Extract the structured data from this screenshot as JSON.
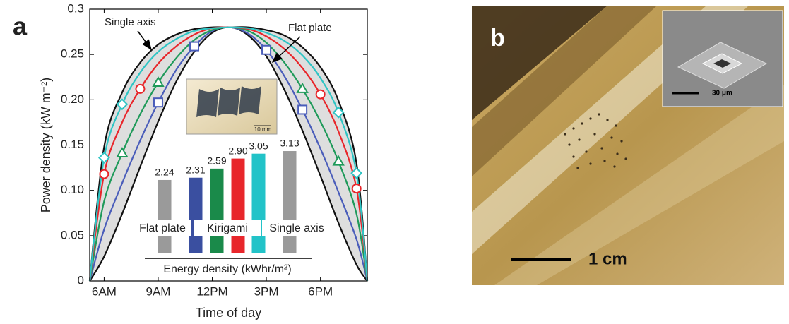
{
  "chart_data": [
    {
      "type": "line",
      "y_label": "Power density (kW m⁻²)",
      "x_label": "Time of day",
      "x": [
        5.2,
        6,
        7,
        8,
        9,
        10,
        11,
        12,
        13,
        14,
        15,
        16,
        17,
        18,
        19,
        20,
        20.6
      ],
      "xlim": [
        5.2,
        20.6
      ],
      "xticks": [
        {
          "value": 6,
          "label": "6AM"
        },
        {
          "value": 9,
          "label": "9AM"
        },
        {
          "value": 12,
          "label": "12PM"
        },
        {
          "value": 15,
          "label": "3PM"
        },
        {
          "value": 18,
          "label": "6PM"
        }
      ],
      "ylim": [
        0,
        0.3
      ],
      "yticks": [
        0,
        0.05,
        {
          "value": 0.1,
          "label": "0.10"
        },
        0.15,
        {
          "value": 0.2,
          "label": "0.20"
        },
        0.25,
        0.3
      ],
      "fill_between_color": "#dedede",
      "series": [
        {
          "color": "#111111",
          "values": [
            0,
            0.027,
            0.074,
            0.126,
            0.176,
            0.22,
            0.253,
            0.274,
            0.28,
            0.271,
            0.248,
            0.211,
            0.166,
            0.116,
            0.064,
            0.018,
            0
          ]
        },
        {
          "color": "#111111",
          "values": [
            0,
            0.148,
            0.208,
            0.241,
            0.261,
            0.272,
            0.278,
            0.28,
            0.28,
            0.28,
            0.277,
            0.271,
            0.258,
            0.236,
            0.199,
            0.13,
            0
          ]
        },
        {
          "color": "#4a5dba",
          "marker": "square",
          "values": [
            0,
            0.057,
            0.108,
            0.155,
            0.197,
            0.233,
            0.259,
            0.276,
            0.28,
            0.273,
            0.255,
            0.226,
            0.189,
            0.146,
            0.098,
            0.046,
            0
          ]
        },
        {
          "color": "#1f9a5a",
          "marker": "triangle",
          "values": [
            0,
            0.088,
            0.141,
            0.184,
            0.219,
            0.246,
            0.266,
            0.277,
            0.28,
            0.276,
            0.263,
            0.241,
            0.212,
            0.176,
            0.132,
            0.074,
            0
          ]
        },
        {
          "color": "#e8262b",
          "marker": "circle",
          "values": [
            0,
            0.118,
            0.175,
            0.212,
            0.24,
            0.259,
            0.272,
            0.279,
            0.28,
            0.278,
            0.27,
            0.256,
            0.235,
            0.206,
            0.165,
            0.102,
            0
          ]
        },
        {
          "color": "#2ec4c4",
          "marker": "diamond",
          "values": [
            0,
            0.136,
            0.195,
            0.23,
            0.253,
            0.267,
            0.276,
            0.279,
            0.28,
            0.279,
            0.274,
            0.265,
            0.249,
            0.224,
            0.186,
            0.119,
            0
          ]
        }
      ],
      "annotations": [
        "Single axis",
        "Flat plate"
      ]
    },
    {
      "type": "bar",
      "x_label": "Energy density (kWhr/m²)",
      "groups": [
        "Flat plate",
        "Kirigami",
        "Single axis"
      ],
      "values": [
        2.24,
        2.31,
        2.59,
        2.9,
        3.05,
        3.13
      ],
      "value_labels": [
        "2.24",
        "2.31",
        "2.59",
        "2.90",
        "3.05",
        "3.13"
      ],
      "colors": [
        "#9a9a9a",
        "#3a4fa0",
        "#1a8a4a",
        "#e8262b",
        "#22c3c8",
        "#9a9a9a"
      ]
    }
  ],
  "panel_labels": [
    "a",
    "b"
  ],
  "photo": {
    "inset_scale": "10 mm",
    "scale_bar": "1 cm",
    "sem_scale": "30 μm"
  }
}
